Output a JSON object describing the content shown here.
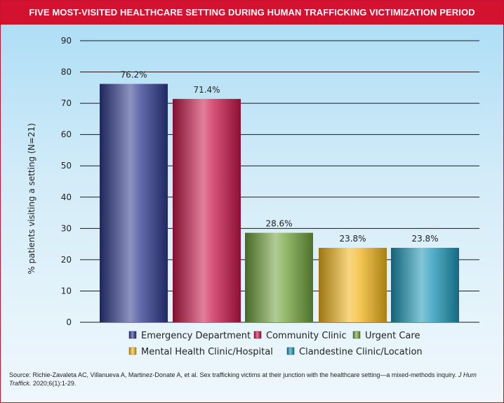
{
  "header": {
    "title": "FIVE MOST-VISITED HEALTHCARE SETTING DURING HUMAN TRAFFICKING VICTIMIZATION PERIOD"
  },
  "chart_data": {
    "type": "bar",
    "title": "FIVE MOST-VISITED HEALTHCARE SETTING DURING HUMAN TRAFFICKING VICTIMIZATION PERIOD",
    "xlabel": "",
    "ylabel": "% patients visiting a setting (N=21)",
    "ylim": [
      0,
      90
    ],
    "yticks": [
      0,
      10,
      20,
      30,
      40,
      50,
      60,
      70,
      80,
      90
    ],
    "grid": true,
    "legend_position": "bottom",
    "categories": [
      "Emergency Department",
      "Community Clinic",
      "Urgent Care",
      "Mental Health Clinic/Hospital",
      "Clandestine Clinic/Location"
    ],
    "values": [
      76.2,
      71.4,
      28.6,
      23.8,
      23.8
    ],
    "value_labels": [
      "76.2%",
      "71.4%",
      "28.6%",
      "23.8%",
      "23.8%"
    ],
    "colors": [
      "#2e3a8c",
      "#c8174a",
      "#6fa23a",
      "#f2b61c",
      "#1c97b7"
    ]
  },
  "source": {
    "prefix": "Source: Richie-Zavaleta AC, Villanueva A, Martinez-Donate A, et al. Sex trafficking victims at their junction with the healthcare setting—a mixed-methods inquiry. ",
    "journal": "J Hum Traffick.",
    "suffix": " 2020;6(1):1-29."
  }
}
